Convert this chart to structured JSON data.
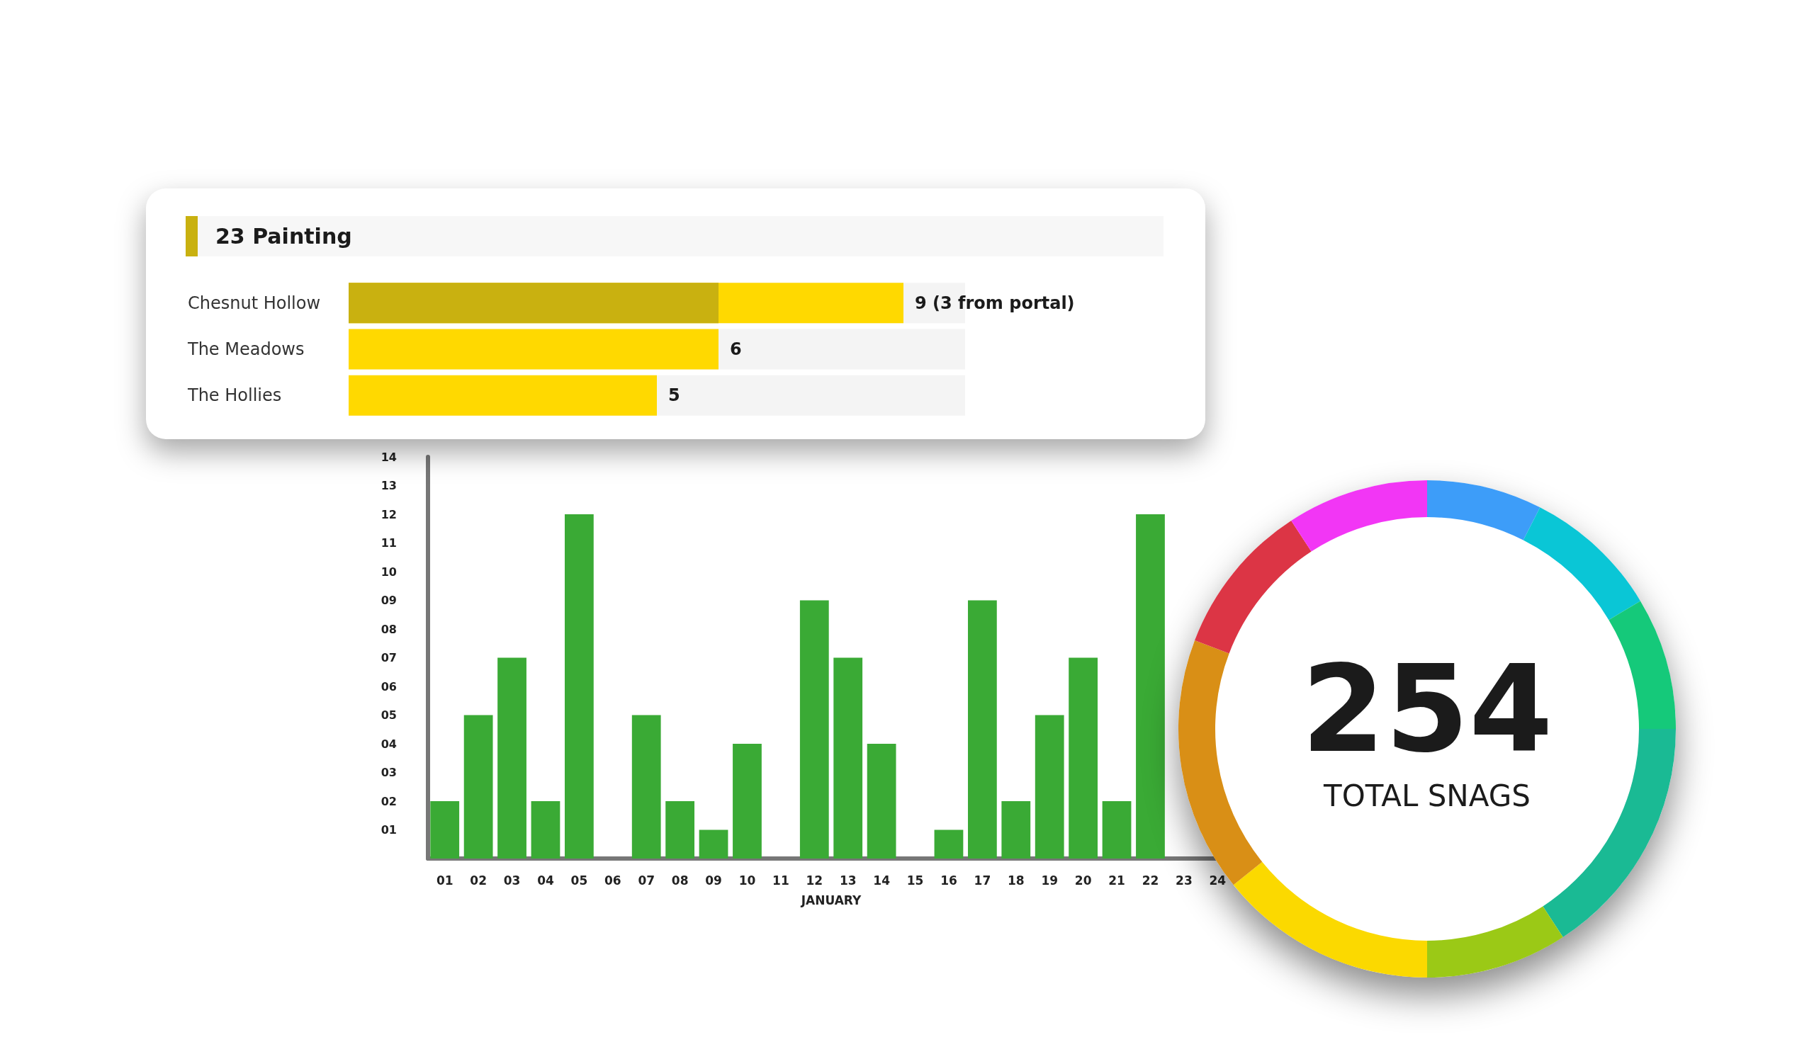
{
  "chart_data": [
    {
      "type": "bar",
      "title": "23 Painting",
      "orientation": "horizontal",
      "categories": [
        "Chesnut Hollow",
        "The Meadows",
        "The Hollies"
      ],
      "series": [
        {
          "values": [
            9,
            6,
            5
          ],
          "color": "#ffd900",
          "value_labels": [
            "9 (3 from portal)",
            "6",
            "5"
          ]
        },
        {
          "values": [
            6,
            null,
            null
          ],
          "color": "#c9b110"
        }
      ]
    },
    {
      "type": "bar",
      "xlabel": "JANUARY",
      "categories": [
        "01",
        "02",
        "03",
        "04",
        "05",
        "06",
        "07",
        "08",
        "09",
        "10",
        "11",
        "12",
        "13",
        "14",
        "15",
        "16",
        "17",
        "18",
        "19",
        "20",
        "21",
        "22",
        "23",
        "24"
      ],
      "values": [
        2,
        5,
        7,
        2,
        12,
        0,
        5,
        2,
        1,
        4,
        0,
        9,
        7,
        4,
        0,
        1,
        9,
        2,
        5,
        7,
        2,
        12,
        0,
        null
      ],
      "color": "#3aaa35",
      "ylim": [
        0,
        14
      ],
      "yticks": [
        {
          "value": 1,
          "label": "01"
        },
        {
          "value": 2,
          "label": "02"
        },
        {
          "value": 3,
          "label": "03"
        },
        {
          "value": 4,
          "label": "04"
        },
        {
          "value": 5,
          "label": "05"
        },
        {
          "value": 6,
          "label": "06"
        },
        {
          "value": 7,
          "label": "07"
        },
        {
          "value": 8,
          "label": "08"
        },
        {
          "value": 9,
          "label": "09"
        },
        {
          "value": 10,
          "label": "10"
        },
        {
          "value": 11,
          "label": "11"
        },
        {
          "value": 12,
          "label": "12"
        },
        {
          "value": 13,
          "label": "13"
        },
        {
          "value": 14,
          "label": "14"
        }
      ]
    },
    {
      "type": "donut",
      "title": "254",
      "subtitle": "TOTAL SNAGS",
      "categories": [
        null,
        null,
        null,
        null,
        null,
        null,
        null,
        null,
        null
      ],
      "values": [
        7.5,
        8.9,
        8.6,
        15.8,
        9.2,
        14.2,
        16.6,
        10,
        9.2
      ],
      "colors": [
        "#3d9df9",
        "#0ac6d6",
        "#15c97a",
        "#1aba94",
        "#9bc916",
        "#fbd900",
        "#d98f16",
        "#dc3545",
        "#f236f5"
      ]
    }
  ]
}
